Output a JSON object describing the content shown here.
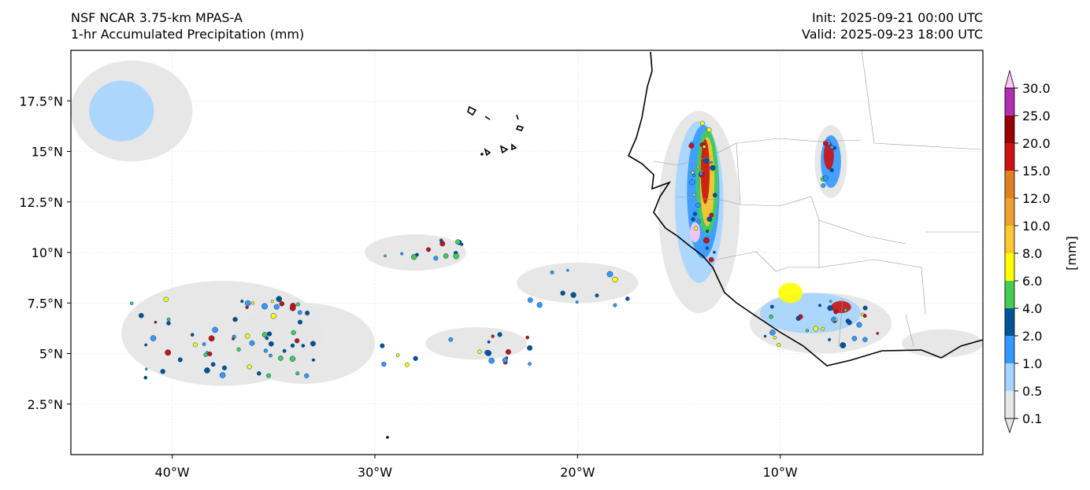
{
  "header": {
    "model": "NSF NCAR 3.75-km MPAS-A",
    "field": "1-hr Accumulated Precipitation (mm)",
    "init": "Init: 2025-09-21 00:00 UTC",
    "valid": "Valid: 2025-09-23 18:00 UTC"
  },
  "axes": {
    "lon_range": [
      -45,
      0
    ],
    "lat_range": [
      0,
      20
    ],
    "lon_ticks": [
      {
        "value": -40,
        "label": "40°W"
      },
      {
        "value": -30,
        "label": "30°W"
      },
      {
        "value": -20,
        "label": "20°W"
      },
      {
        "value": -10,
        "label": "10°W"
      }
    ],
    "lat_ticks": [
      {
        "value": 17.5,
        "label": "17.5°N"
      },
      {
        "value": 15,
        "label": "15°N"
      },
      {
        "value": 12.5,
        "label": "12.5°N"
      },
      {
        "value": 10,
        "label": "10°N"
      },
      {
        "value": 7.5,
        "label": "7.5°N"
      },
      {
        "value": 5,
        "label": "5°N"
      },
      {
        "value": 2.5,
        "label": "2.5°N"
      }
    ],
    "grid": true
  },
  "colorbar": {
    "unit_label": "[mm]",
    "extend": "both",
    "levels": [
      {
        "label": "0.1",
        "color": "#e6e6e6"
      },
      {
        "label": "0.5",
        "color": "#a6d4ff"
      },
      {
        "label": "1.0",
        "color": "#3399ff"
      },
      {
        "label": "2.0",
        "color": "#005599"
      },
      {
        "label": "4.0",
        "color": "#44cc55"
      },
      {
        "label": "6.0",
        "color": "#ffff00"
      },
      {
        "label": "8.0",
        "color": "#ffc830"
      },
      {
        "label": "10.0",
        "color": "#f0a030"
      },
      {
        "label": "12.0",
        "color": "#e08020"
      },
      {
        "label": "15.0",
        "color": "#cc1111"
      },
      {
        "label": "20.0",
        "color": "#990000"
      },
      {
        "label": "25.0",
        "color": "#b030b0"
      },
      {
        "label": "30.0",
        "color": "#ffc8f5"
      }
    ]
  },
  "precip_regions": [
    {
      "lon": -37.5,
      "lat": 6.0,
      "rlon": 5.0,
      "rlat": 2.6,
      "level": 0
    },
    {
      "lon": -33.5,
      "lat": 5.5,
      "rlon": 3.5,
      "rlat": 2.0,
      "level": 0
    },
    {
      "lon": -42.0,
      "lat": 17.0,
      "rlon": 3.0,
      "rlat": 2.5,
      "level": 0
    },
    {
      "lon": -42.5,
      "lat": 17.0,
      "rlon": 1.6,
      "rlat": 1.5,
      "level": 1
    },
    {
      "lon": -28.0,
      "lat": 10.0,
      "rlon": 2.5,
      "rlat": 0.9,
      "level": 0
    },
    {
      "lon": -14.0,
      "lat": 12.0,
      "rlon": 2.0,
      "rlat": 5.0,
      "level": 0
    },
    {
      "lon": -14.0,
      "lat": 12.5,
      "rlon": 1.2,
      "rlat": 4.0,
      "level": 1
    },
    {
      "lon": -13.8,
      "lat": 13.0,
      "rlon": 0.8,
      "rlat": 3.3,
      "level": 2
    },
    {
      "lon": -13.6,
      "lat": 13.5,
      "rlon": 0.55,
      "rlat": 2.6,
      "level": 4
    },
    {
      "lon": -13.6,
      "lat": 13.5,
      "rlon": 0.35,
      "rlat": 2.2,
      "level": 6
    },
    {
      "lon": -13.7,
      "lat": 14.0,
      "rlon": 0.22,
      "rlat": 1.6,
      "level": 9
    },
    {
      "lon": -14.2,
      "lat": 11.0,
      "rlon": 0.25,
      "rlat": 0.5,
      "level": 12
    },
    {
      "lon": -7.5,
      "lat": 14.5,
      "rlon": 0.8,
      "rlat": 1.8,
      "level": 0
    },
    {
      "lon": -7.5,
      "lat": 14.5,
      "rlon": 0.5,
      "rlat": 1.3,
      "level": 2
    },
    {
      "lon": -7.6,
      "lat": 14.8,
      "rlon": 0.25,
      "rlat": 0.7,
      "level": 9
    },
    {
      "lon": -8.0,
      "lat": 6.5,
      "rlon": 3.5,
      "rlat": 1.5,
      "level": 0
    },
    {
      "lon": -8.5,
      "lat": 7.0,
      "rlon": 2.5,
      "rlat": 1.0,
      "level": 1
    },
    {
      "lon": -9.5,
      "lat": 8.0,
      "rlon": 0.6,
      "rlat": 0.5,
      "level": 5
    },
    {
      "lon": -7.0,
      "lat": 7.3,
      "rlon": 0.5,
      "rlat": 0.3,
      "level": 9
    },
    {
      "lon": -2.0,
      "lat": 5.5,
      "rlon": 2.0,
      "rlat": 0.7,
      "level": 0
    },
    {
      "lon": -20.0,
      "lat": 8.5,
      "rlon": 3.0,
      "rlat": 1.0,
      "level": 0
    },
    {
      "lon": -25.0,
      "lat": 5.5,
      "rlon": 2.5,
      "rlat": 0.8,
      "level": 0
    }
  ]
}
